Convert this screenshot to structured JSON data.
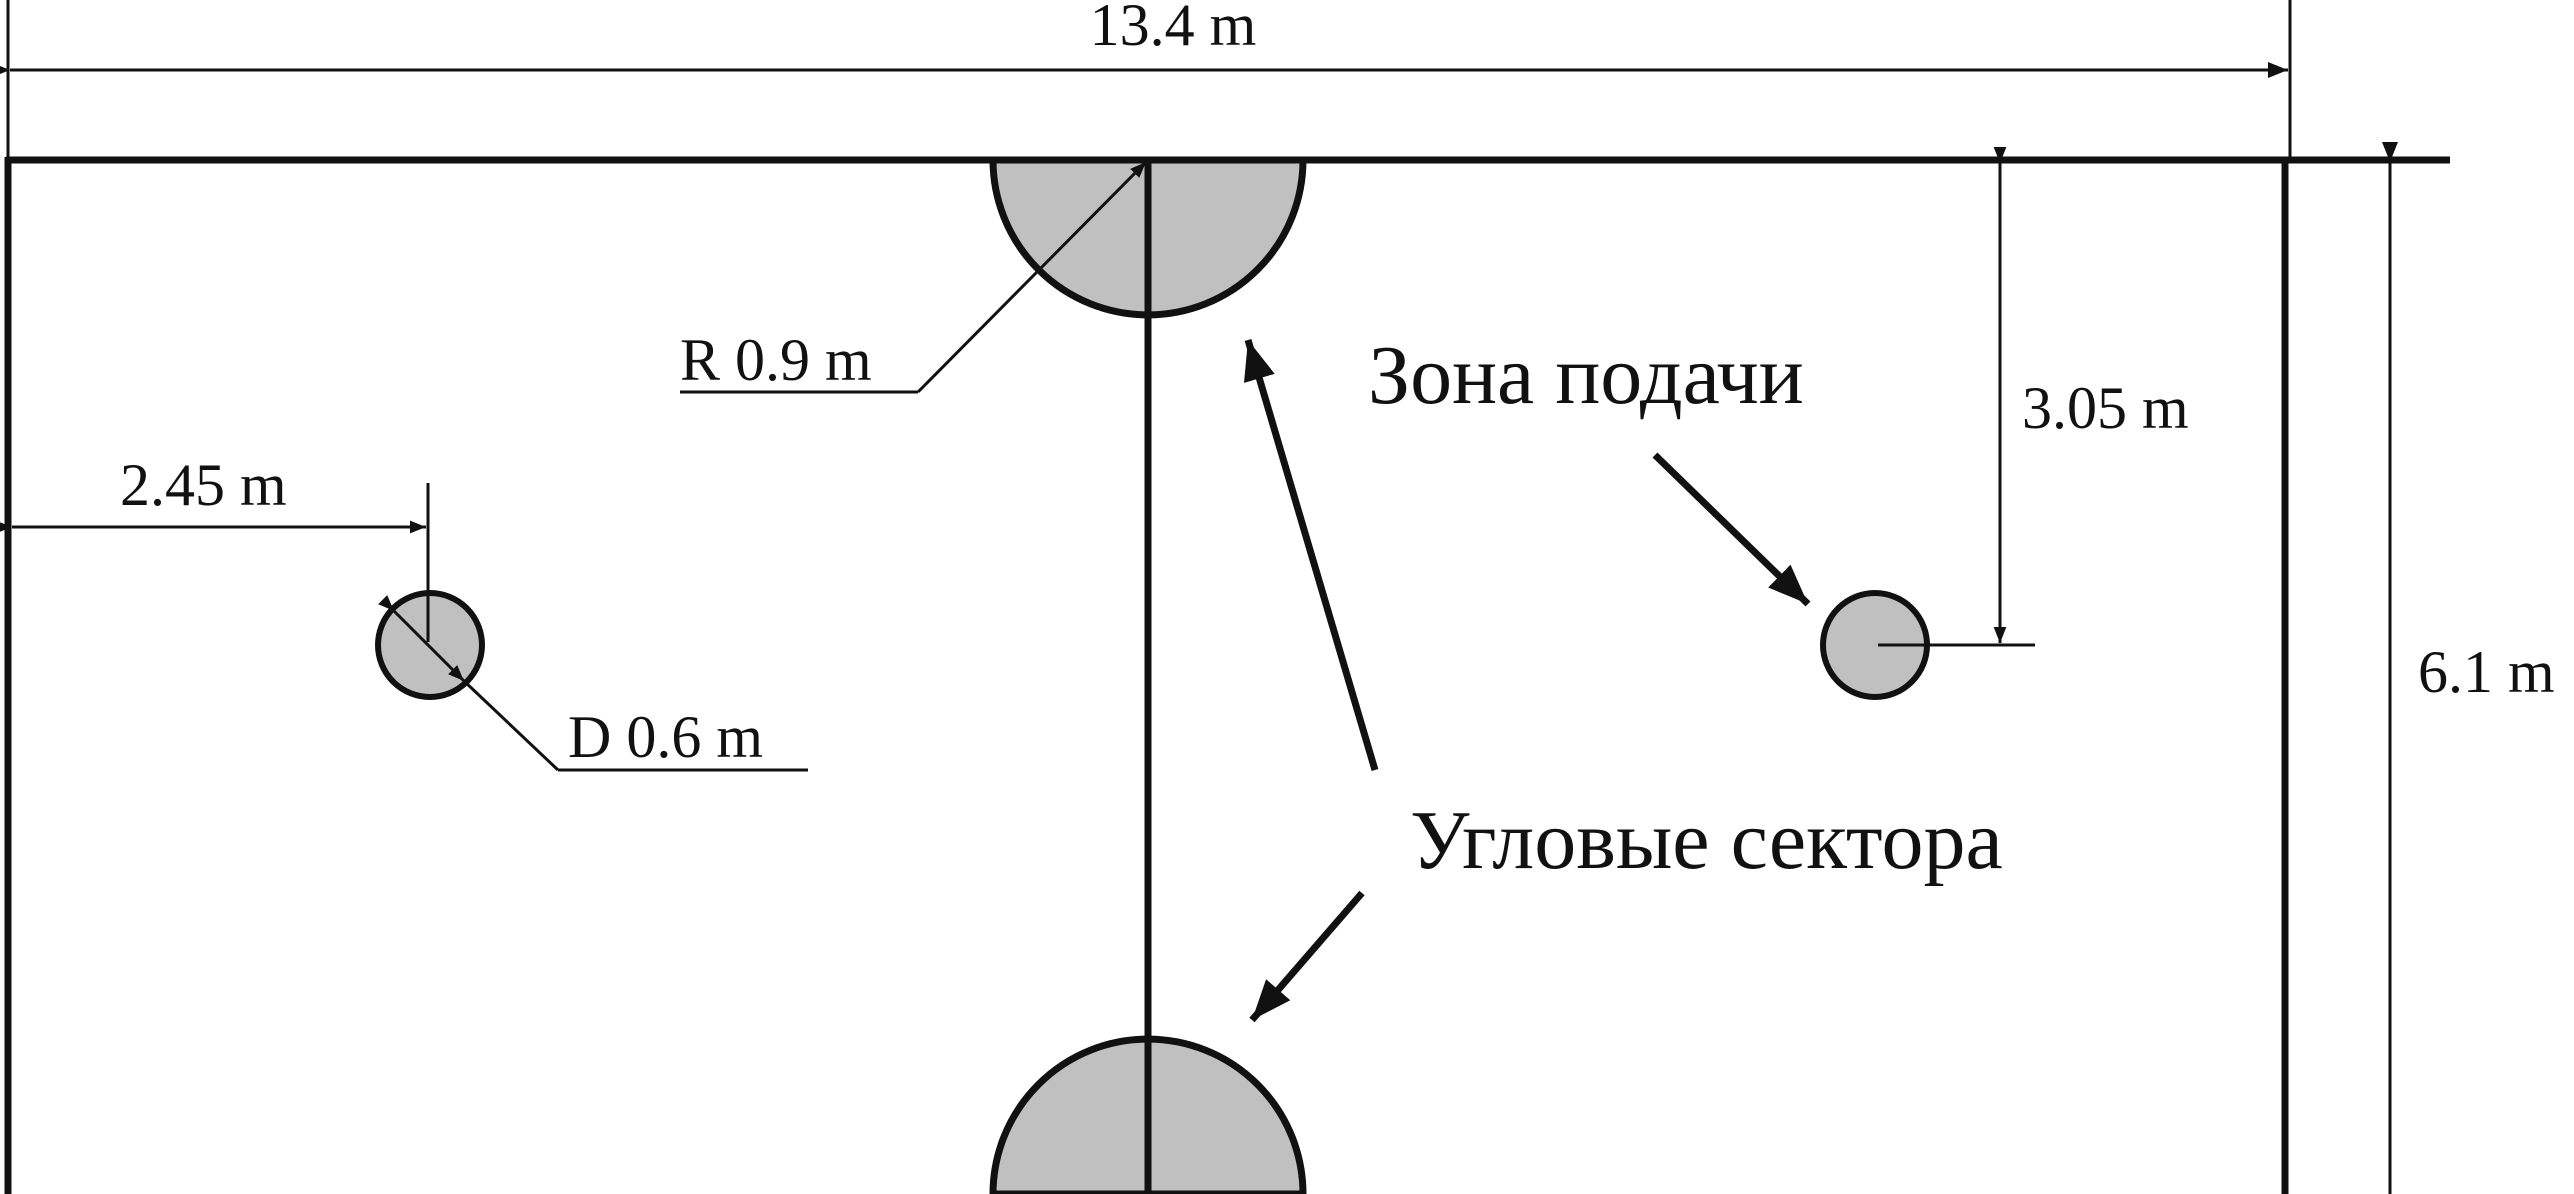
{
  "labels": {
    "width": "13.4 m",
    "height": "6.1 m",
    "corner_radius": "R 0.9 m",
    "spot_offset_x": "2.45 m",
    "spot_diameter": "D 0.6 m",
    "spot_offset_y": "3.05 m",
    "serve_zone": "Зона подачи",
    "corner_sectors": "Угловые  сектора"
  },
  "colors": {
    "line": "#111111",
    "fill": "#c0c0c0",
    "background": "#ffffff"
  }
}
